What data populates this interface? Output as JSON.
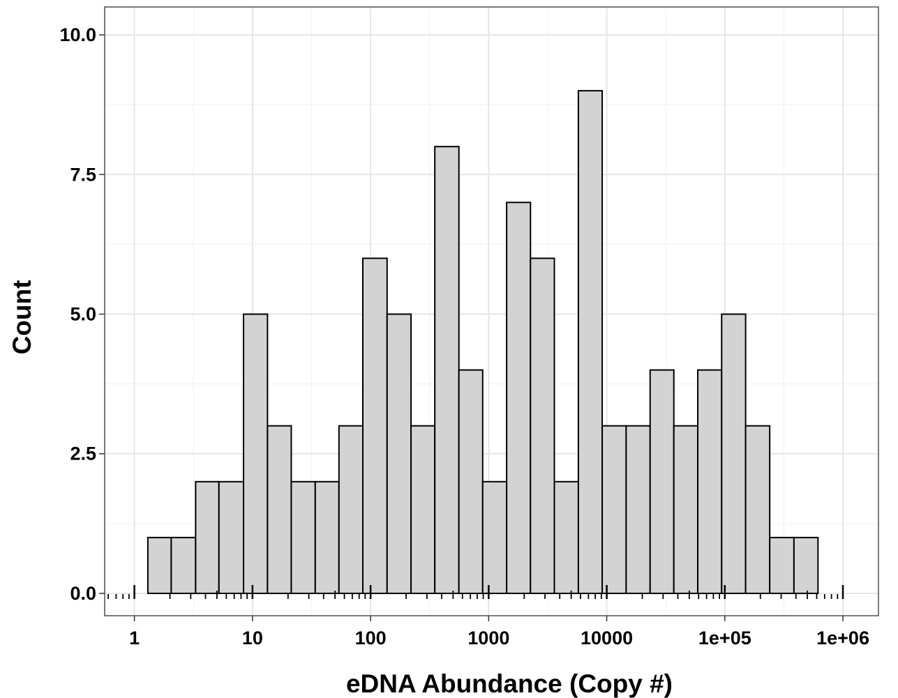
{
  "chart_data": {
    "type": "bar",
    "title": "",
    "xlabel": "eDNA Abundance (Copy #)",
    "ylabel": "Count",
    "x_scale": "log10",
    "xlim": [
      0.56,
      2000000
    ],
    "ylim": [
      -0.4,
      10.5
    ],
    "x_ticks": [
      1,
      10,
      100,
      1000,
      10000,
      100000,
      1000000
    ],
    "x_tick_labels": [
      "1",
      "10",
      "100",
      "1000",
      "10000",
      "1e+05",
      "1e+06"
    ],
    "y_ticks": [
      0,
      2.5,
      5,
      7.5,
      10
    ],
    "y_tick_labels": [
      "0.0",
      "2.5",
      "5.0",
      "7.5",
      "10.0"
    ],
    "grid": true,
    "bar_fill": "#d3d3d3",
    "bar_stroke": "#000000",
    "bins": [
      {
        "x_low": 1.3,
        "x_high": 2.05,
        "count": 1
      },
      {
        "x_low": 2.05,
        "x_high": 3.3,
        "count": 1
      },
      {
        "x_low": 3.3,
        "x_high": 5.2,
        "count": 2
      },
      {
        "x_low": 5.2,
        "x_high": 8.4,
        "count": 2
      },
      {
        "x_low": 8.4,
        "x_high": 13.4,
        "count": 5
      },
      {
        "x_low": 13.4,
        "x_high": 21.3,
        "count": 3
      },
      {
        "x_low": 21.3,
        "x_high": 34,
        "count": 2
      },
      {
        "x_low": 34,
        "x_high": 54,
        "count": 2
      },
      {
        "x_low": 54,
        "x_high": 86,
        "count": 3
      },
      {
        "x_low": 86,
        "x_high": 138,
        "count": 6
      },
      {
        "x_low": 138,
        "x_high": 220,
        "count": 5
      },
      {
        "x_low": 220,
        "x_high": 350,
        "count": 3
      },
      {
        "x_low": 350,
        "x_high": 560,
        "count": 8
      },
      {
        "x_low": 560,
        "x_high": 890,
        "count": 4
      },
      {
        "x_low": 890,
        "x_high": 1420,
        "count": 2
      },
      {
        "x_low": 1420,
        "x_high": 2260,
        "count": 7
      },
      {
        "x_low": 2260,
        "x_high": 3600,
        "count": 6
      },
      {
        "x_low": 3600,
        "x_high": 5750,
        "count": 2
      },
      {
        "x_low": 5750,
        "x_high": 9150,
        "count": 9
      },
      {
        "x_low": 9150,
        "x_high": 14600,
        "count": 3
      },
      {
        "x_low": 14600,
        "x_high": 23300,
        "count": 3
      },
      {
        "x_low": 23300,
        "x_high": 37000,
        "count": 4
      },
      {
        "x_low": 37000,
        "x_high": 59000,
        "count": 3
      },
      {
        "x_low": 59000,
        "x_high": 94000,
        "count": 4
      },
      {
        "x_low": 94000,
        "x_high": 150000,
        "count": 5
      },
      {
        "x_low": 150000,
        "x_high": 240000,
        "count": 3
      },
      {
        "x_low": 240000,
        "x_high": 385000,
        "count": 1
      },
      {
        "x_low": 385000,
        "x_high": 615000,
        "count": 1
      }
    ]
  }
}
